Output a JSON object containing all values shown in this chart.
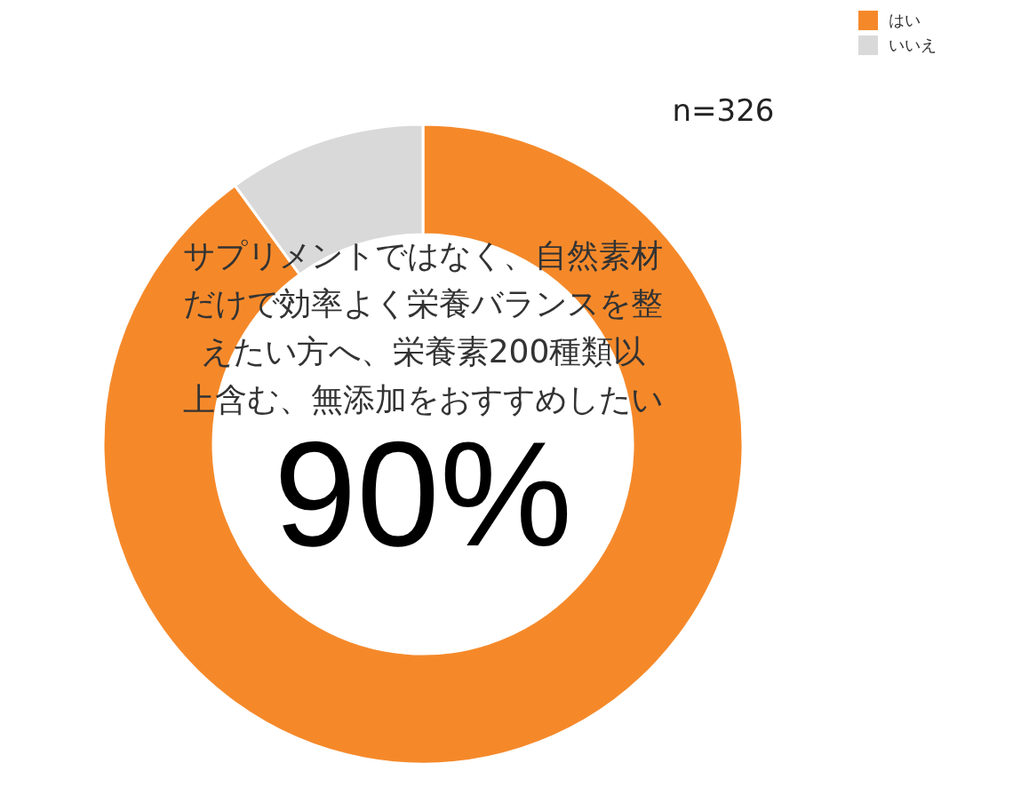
{
  "chart_data": {
    "type": "donut",
    "title": "サプリメントではなく、自然素材だけで効率よく栄養バランスを整えたい方へ、栄養素200種類以上含む、無添加をおすすめしたい",
    "categories": [
      "はい",
      "いいえ"
    ],
    "values": [
      90,
      10
    ],
    "colors": [
      "#f5892a",
      "#d9d9d9"
    ],
    "value_labels": [
      "90%",
      null
    ],
    "annotations": [
      "n=326"
    ],
    "legend": "top right"
  }
}
